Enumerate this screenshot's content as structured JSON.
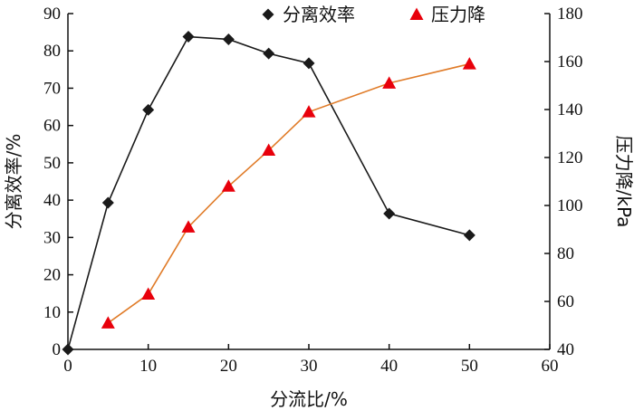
{
  "chart_data": {
    "type": "line",
    "xlabel": "分流比/%",
    "ylabel_left": "分离效率/%",
    "ylabel_right": "压力降/kPa",
    "xlim": [
      0,
      60
    ],
    "ylim_left": [
      0,
      90
    ],
    "ylim_right": [
      40,
      180
    ],
    "x_ticks": [
      0,
      10,
      20,
      30,
      40,
      50,
      60
    ],
    "y_left_ticks": [
      0,
      10,
      20,
      30,
      40,
      50,
      60,
      70,
      80,
      90
    ],
    "y_right_ticks": [
      40,
      60,
      80,
      100,
      120,
      140,
      160,
      180
    ],
    "grid": false,
    "legend_position": "top",
    "series": [
      {
        "name": "分离效率",
        "axis": "left",
        "marker": "diamond",
        "color": "#1a1a1a",
        "line_color": "#1a1a1a",
        "x": [
          0,
          5,
          10,
          15,
          20,
          25,
          30,
          40,
          50
        ],
        "y": [
          0,
          39.3,
          64.2,
          83.8,
          83.1,
          79.3,
          76.7,
          36.4,
          30.6
        ]
      },
      {
        "name": "压力降",
        "axis": "right",
        "marker": "triangle",
        "color": "#e8000b",
        "line_color": "#e07b28",
        "x": [
          5,
          10,
          15,
          20,
          25,
          30,
          40,
          50
        ],
        "y": [
          51,
          63,
          91,
          108,
          123,
          139,
          151,
          159
        ]
      }
    ]
  }
}
